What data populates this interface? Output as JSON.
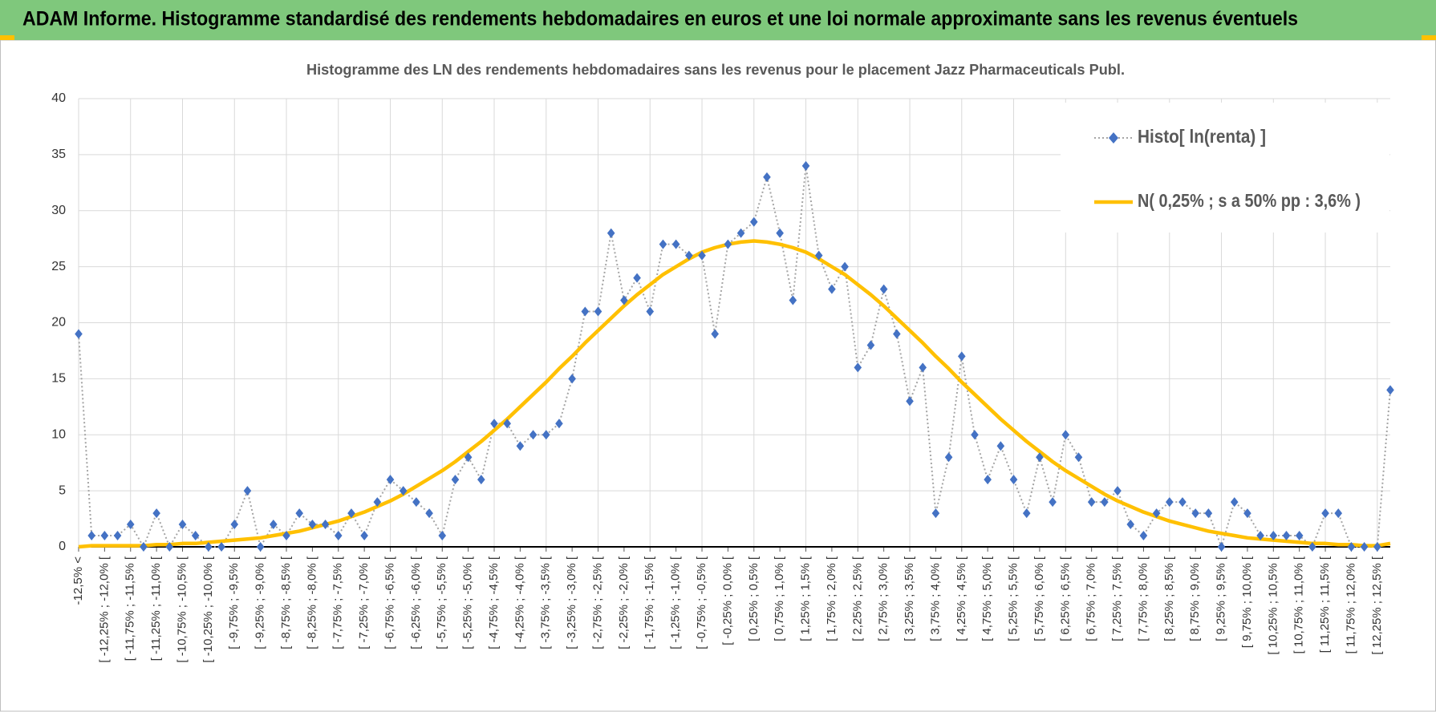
{
  "chart_data": {
    "type": "line",
    "title": "ADAM Informe. Histogramme standardisé des rendements hebdomadaires en euros et une loi normale approximante sans les revenus éventuels",
    "subtitle": "Histogramme des LN des rendements hebdomadaires sans les revenus pour le placement Jazz Pharmaceuticals Publ.",
    "categories": [
      "-12,5% <",
      null,
      "[ -12,25% ; -12,0% [",
      null,
      "[ -11,75% ; -11,5% [",
      null,
      "[ -11,25% ; -11,0% [",
      null,
      "[ -10,75% ; -10,5% [",
      null,
      "[ -10,25% ; -10,0% [",
      null,
      "[ -9,75% ; -9,5% [",
      null,
      "[ -9,25% ; -9,0% [",
      null,
      "[ -8,75% ; -8,5% [",
      null,
      "[ -8,25% ; -8,0% [",
      null,
      "[ -7,75% ; -7,5% [",
      null,
      "[ -7,25% ; -7,0% [",
      null,
      "[ -6,75% ; -6,5% [",
      null,
      "[ -6,25% ; -6,0% [",
      null,
      "[ -5,75% ; -5,5% [",
      null,
      "[ -5,25% ; -5,0% [",
      null,
      "[ -4,75% ; -4,5% [",
      null,
      "[ -4,25% ; -4,0% [",
      null,
      "[ -3,75% ; -3,5% [",
      null,
      "[ -3,25% ; -3,0% [",
      null,
      "[ -2,75% ; -2,5% [",
      null,
      "[ -2,25% ; -2,0% [",
      null,
      "[ -1,75% ; -1,5% [",
      null,
      "[ -1,25% ; -1,0% [",
      null,
      "[ -0,75% ; -0,5% [",
      null,
      "[ -0,25% ; 0,0% [",
      null,
      "[ 0,25% ; 0,5% [",
      null,
      "[ 0,75% ; 1,0% [",
      null,
      "[ 1,25% ; 1,5% [",
      null,
      "[ 1,75% ; 2,0% [",
      null,
      "[ 2,25% ; 2,5% [",
      null,
      "[ 2,75% ; 3,0% [",
      null,
      "[ 3,25% ; 3,5% [",
      null,
      "[ 3,75% ; 4,0% [",
      null,
      "[ 4,25% ; 4,5% [",
      null,
      "[ 4,75% ; 5,0% [",
      null,
      "[ 5,25% ; 5,5% [",
      null,
      "[ 5,75% ; 6,0% [",
      null,
      "[ 6,25% ; 6,5% [",
      null,
      "[ 6,75% ; 7,0% [",
      null,
      "[ 7,25% ; 7,5% [",
      null,
      "[ 7,75% ; 8,0% [",
      null,
      "[ 8,25% ; 8,5% [",
      null,
      "[ 8,75% ; 9,0% [",
      null,
      "[ 9,25% ; 9,5% [",
      null,
      "[ 9,75% ; 10,0% [",
      null,
      "[ 10,25% ; 10,5% [",
      null,
      "[ 10,75% ; 11,0% [",
      null,
      "[ 11,25% ; 11,5% [",
      null,
      "[ 11,75% ; 12,0% [",
      null,
      "[ 12,25% ; 12,5% [",
      null
    ],
    "series": [
      {
        "name": "Histo[ ln(renta) ]",
        "color": "#4472c4",
        "line_color": "#a5a5a5",
        "marker": "diamond",
        "line_style": "dotted",
        "values": [
          19,
          1,
          1,
          1,
          2,
          0,
          3,
          0,
          2,
          1,
          0,
          0,
          2,
          5,
          0,
          2,
          1,
          3,
          2,
          2,
          1,
          3,
          1,
          4,
          6,
          5,
          4,
          3,
          1,
          6,
          8,
          6,
          11,
          11,
          9,
          10,
          10,
          11,
          15,
          21,
          21,
          28,
          22,
          24,
          21,
          27,
          27,
          26,
          26,
          19,
          27,
          28,
          29,
          33,
          28,
          22,
          34,
          26,
          23,
          25,
          16,
          18,
          23,
          19,
          13,
          16,
          3,
          8,
          17,
          10,
          6,
          9,
          6,
          3,
          8,
          4,
          10,
          8,
          4,
          4,
          5,
          2,
          1,
          3,
          4,
          4,
          3,
          3,
          0,
          4,
          3,
          1,
          1,
          1,
          1,
          0,
          3,
          3,
          0,
          0,
          0,
          14
        ]
      },
      {
        "name": "N( 0,25% ; s a 50% pp : 3,6% )",
        "color": "#ffc000",
        "values": [
          0.0,
          0.1,
          0.1,
          0.1,
          0.1,
          0.1,
          0.2,
          0.2,
          0.3,
          0.3,
          0.4,
          0.5,
          0.6,
          0.7,
          0.8,
          1.0,
          1.2,
          1.4,
          1.7,
          2.0,
          2.3,
          2.7,
          3.1,
          3.6,
          4.1,
          4.7,
          5.4,
          6.1,
          6.8,
          7.6,
          8.5,
          9.4,
          10.4,
          11.4,
          12.5,
          13.6,
          14.7,
          15.9,
          17.0,
          18.2,
          19.3,
          20.4,
          21.5,
          22.5,
          23.4,
          24.3,
          25.0,
          25.7,
          26.3,
          26.7,
          27.0,
          27.2,
          27.3,
          27.2,
          27.0,
          26.7,
          26.3,
          25.7,
          25.0,
          24.3,
          23.4,
          22.5,
          21.5,
          20.4,
          19.3,
          18.2,
          17.0,
          15.9,
          14.7,
          13.6,
          12.5,
          11.4,
          10.4,
          9.4,
          8.5,
          7.6,
          6.8,
          6.1,
          5.4,
          4.7,
          4.1,
          3.6,
          3.1,
          2.7,
          2.3,
          2.0,
          1.7,
          1.4,
          1.2,
          1.0,
          0.8,
          0.7,
          0.6,
          0.5,
          0.4,
          0.3,
          0.3,
          0.2,
          0.2,
          0.1,
          0.1,
          0.3
        ]
      }
    ],
    "ylim": [
      0,
      40
    ],
    "yticks": [
      0,
      5,
      10,
      15,
      20,
      25,
      30,
      35,
      40
    ],
    "grid": true,
    "legend": "top-right"
  }
}
